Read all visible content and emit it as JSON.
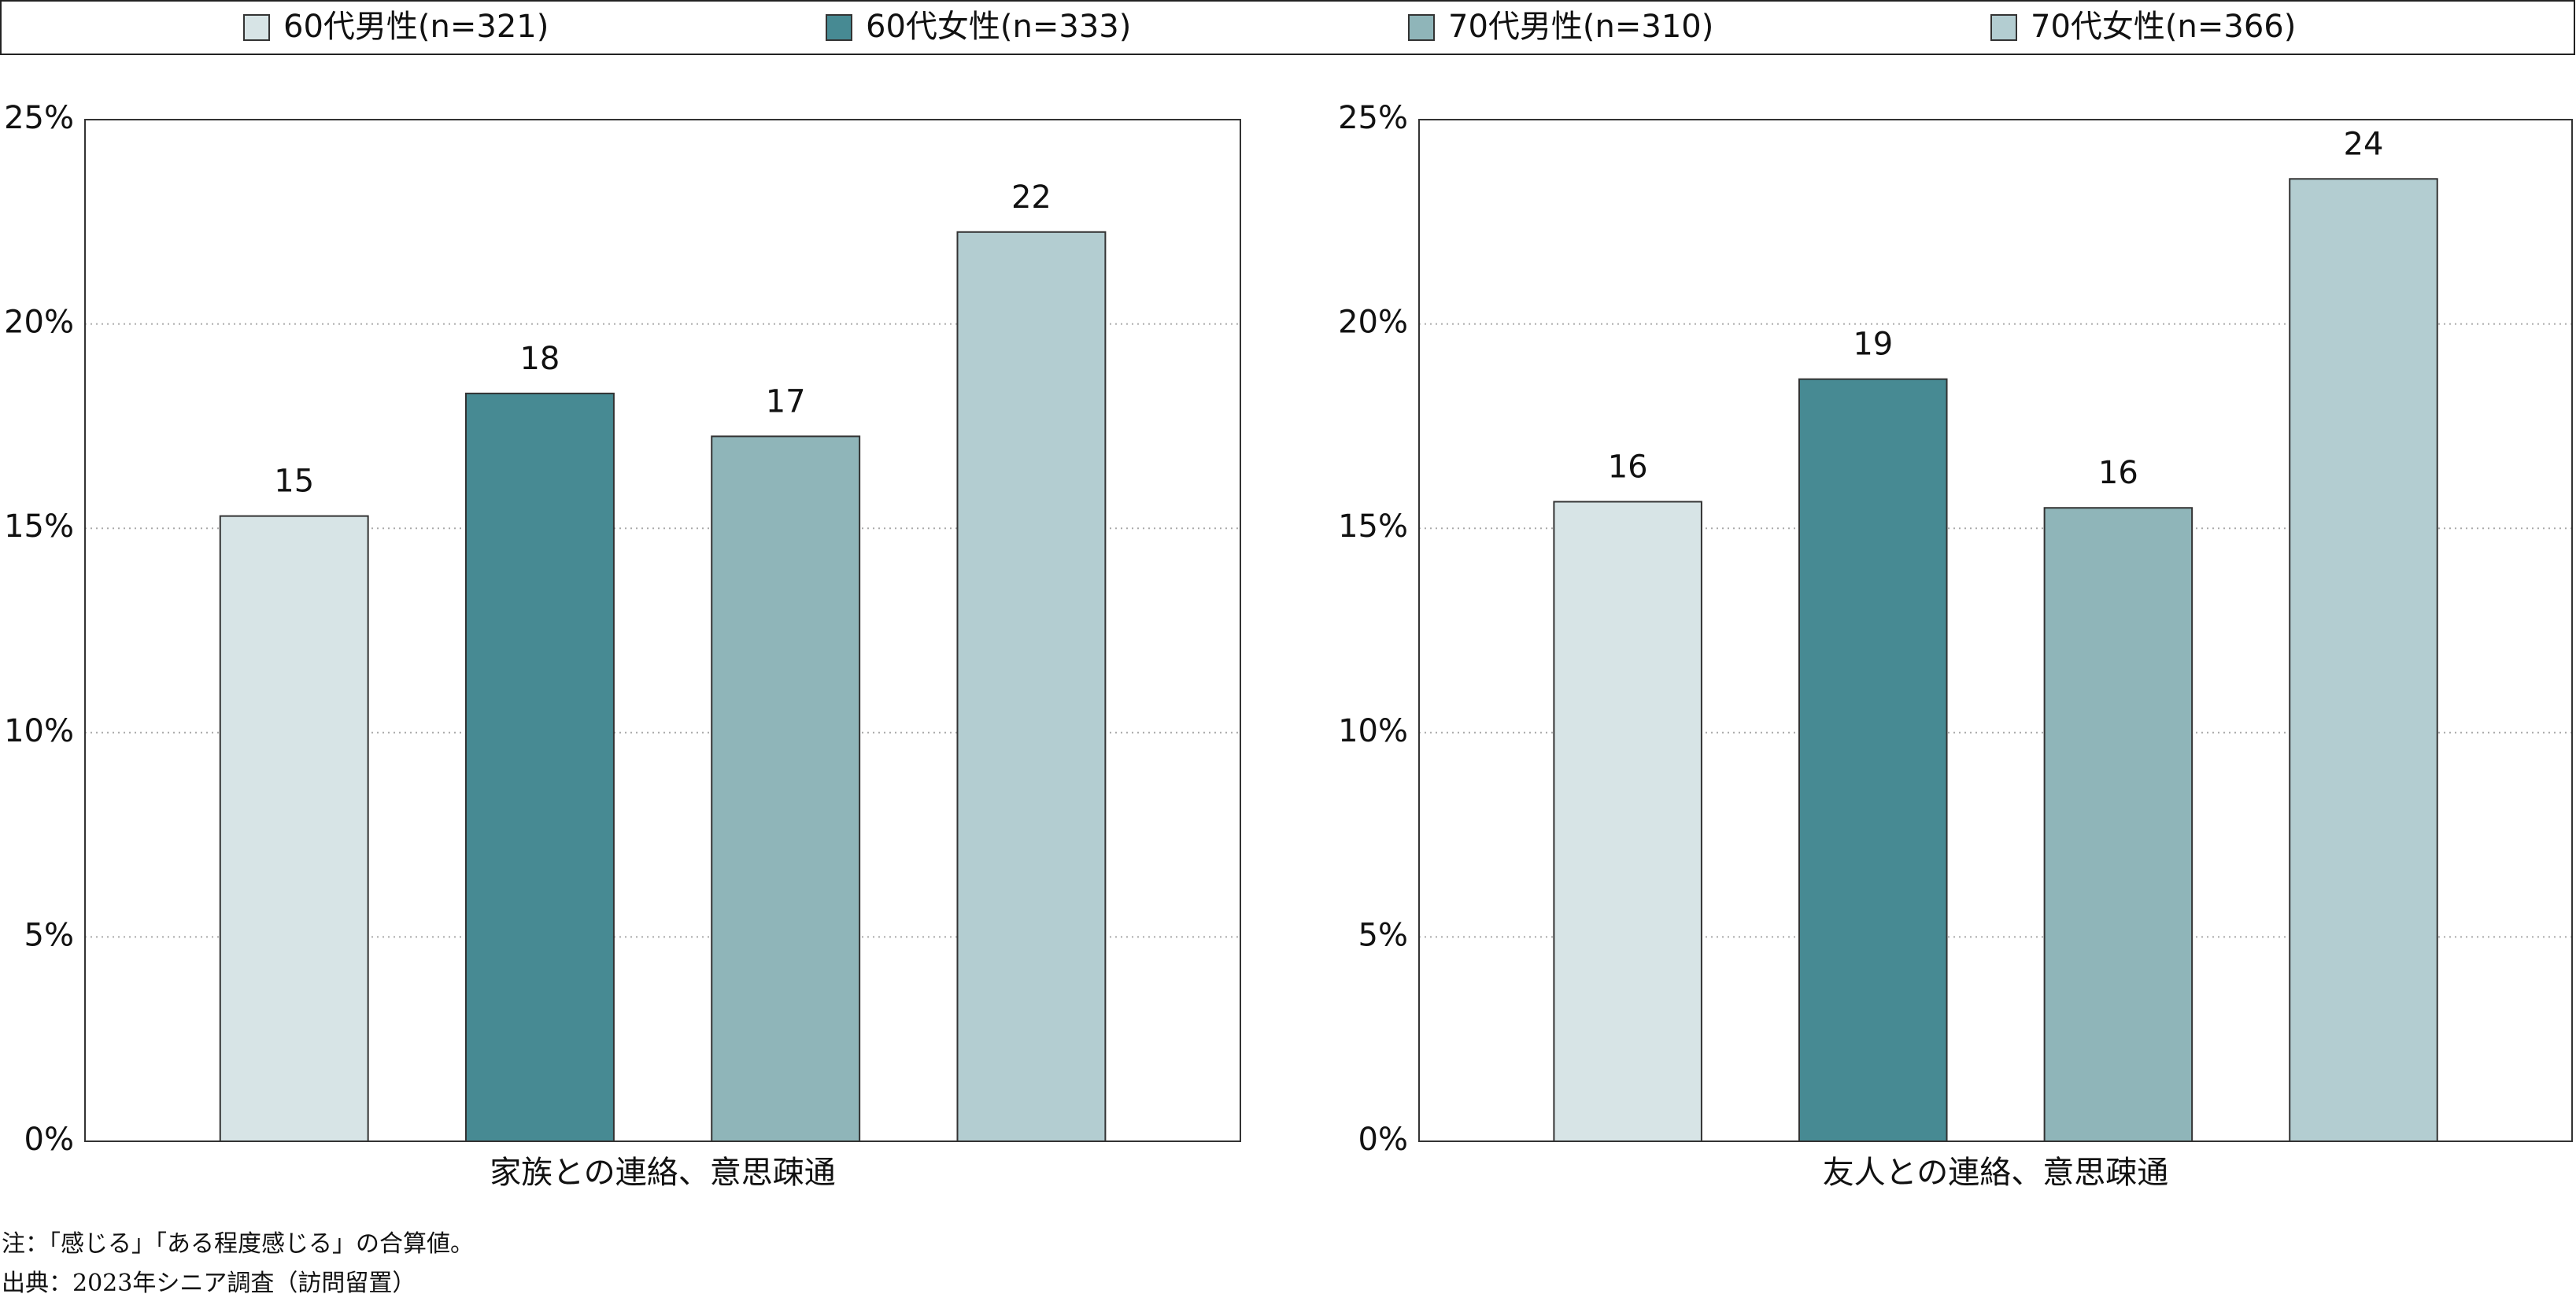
{
  "chart_data": [
    {
      "type": "bar",
      "categories": [
        "家族との連絡、意思疎通"
      ],
      "series": [
        {
          "name": "60代男性(n=321)",
          "color": "#d7e4e6",
          "values": [
            15.3
          ],
          "value_labels": [
            "15"
          ]
        },
        {
          "name": "60代女性(n=333)",
          "color": "#478a93",
          "values": [
            18.3
          ],
          "value_labels": [
            "18"
          ]
        },
        {
          "name": "70代男性(n=310)",
          "color": "#8fb5b9",
          "values": [
            17.25
          ],
          "value_labels": [
            "17"
          ]
        },
        {
          "name": "70代女性(n=366)",
          "color": "#b3cdd1",
          "values": [
            22.25
          ],
          "value_labels": [
            "22"
          ]
        }
      ],
      "ylim": [
        0,
        25
      ],
      "yticks": [
        {
          "value": 0,
          "label": "0%"
        },
        {
          "value": 5,
          "label": "5%"
        },
        {
          "value": 10,
          "label": "10%"
        },
        {
          "value": 15,
          "label": "15%"
        },
        {
          "value": 20,
          "label": "20%"
        },
        {
          "value": 25,
          "label": "25%"
        }
      ],
      "grid": true
    },
    {
      "type": "bar",
      "categories": [
        "友人との連絡、意思疎通"
      ],
      "series": [
        {
          "values": [
            15.65
          ],
          "value_labels": [
            "16"
          ]
        },
        {
          "values": [
            18.65
          ],
          "value_labels": [
            "19"
          ]
        },
        {
          "values": [
            15.5
          ],
          "value_labels": [
            "16"
          ]
        },
        {
          "values": [
            23.55
          ],
          "value_labels": [
            "24"
          ]
        }
      ],
      "ylim": [
        0,
        25
      ],
      "yticks": [
        {
          "value": 0,
          "label": "0%"
        },
        {
          "value": 5,
          "label": "5%"
        },
        {
          "value": 10,
          "label": "10%"
        },
        {
          "value": 15,
          "label": "15%"
        },
        {
          "value": 20,
          "label": "20%"
        },
        {
          "value": 25,
          "label": "25%"
        }
      ],
      "grid": true
    }
  ],
  "notes": [
    "注：「感じる」「ある程度感じる」の合算値。",
    "出典：2023年シニア調査（訪問留置）"
  ]
}
